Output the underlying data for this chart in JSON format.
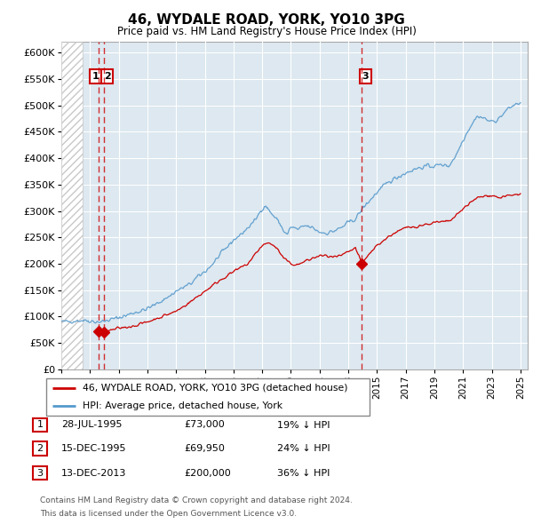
{
  "title": "46, WYDALE ROAD, YORK, YO10 3PG",
  "subtitle": "Price paid vs. HM Land Registry's House Price Index (HPI)",
  "transactions": [
    {
      "label": "1",
      "date": 1995.57,
      "price": 73000
    },
    {
      "label": "2",
      "date": 1995.96,
      "price": 69950
    },
    {
      "label": "3",
      "date": 2013.95,
      "price": 200000
    }
  ],
  "transaction_table": [
    {
      "num": "1",
      "date": "28-JUL-1995",
      "price": "£73,000",
      "hpi": "19% ↓ HPI"
    },
    {
      "num": "2",
      "date": "15-DEC-1995",
      "price": "£69,950",
      "hpi": "24% ↓ HPI"
    },
    {
      "num": "3",
      "date": "13-DEC-2013",
      "price": "£200,000",
      "hpi": "36% ↓ HPI"
    }
  ],
  "legend_line1": "46, WYDALE ROAD, YORK, YO10 3PG (detached house)",
  "legend_line2": "HPI: Average price, detached house, York",
  "footnote1": "Contains HM Land Registry data © Crown copyright and database right 2024.",
  "footnote2": "This data is licensed under the Open Government Licence v3.0.",
  "red_color": "#cc0000",
  "blue_line_color": "#5599cc",
  "bg_color": "#dde8f0",
  "hatch_color": "#c8c8c8",
  "ylim_max": 620000,
  "xmin": 1993.0,
  "xmax": 2025.5,
  "hpi_base_x": [
    1993.0,
    1993.5,
    1994.0,
    1994.5,
    1995.0,
    1995.5,
    1996.0,
    1996.5,
    1997.0,
    1997.5,
    1998.0,
    1998.5,
    1999.0,
    1999.5,
    2000.0,
    2000.5,
    2001.0,
    2001.5,
    2002.0,
    2002.5,
    2003.0,
    2003.5,
    2004.0,
    2004.5,
    2005.0,
    2005.5,
    2006.0,
    2006.5,
    2007.0,
    2007.25,
    2007.5,
    2007.75,
    2008.0,
    2008.25,
    2008.5,
    2008.75,
    2009.0,
    2009.5,
    2010.0,
    2010.5,
    2011.0,
    2011.5,
    2012.0,
    2012.5,
    2013.0,
    2013.5,
    2014.0,
    2014.5,
    2015.0,
    2015.5,
    2016.0,
    2016.5,
    2017.0,
    2017.5,
    2018.0,
    2018.5,
    2019.0,
    2019.5,
    2020.0,
    2020.5,
    2021.0,
    2021.5,
    2022.0,
    2022.5,
    2023.0,
    2023.5,
    2024.0,
    2024.5,
    2025.0
  ],
  "hpi_base_y": [
    90000,
    91000,
    92000,
    93000,
    92000,
    90000,
    91000,
    95000,
    98000,
    102000,
    107000,
    110000,
    115000,
    122000,
    130000,
    138000,
    148000,
    155000,
    162000,
    175000,
    185000,
    198000,
    215000,
    230000,
    245000,
    255000,
    268000,
    282000,
    305000,
    310000,
    300000,
    292000,
    285000,
    275000,
    262000,
    255000,
    270000,
    265000,
    272000,
    268000,
    260000,
    258000,
    262000,
    268000,
    278000,
    285000,
    305000,
    320000,
    335000,
    348000,
    358000,
    365000,
    372000,
    378000,
    382000,
    385000,
    385000,
    388000,
    385000,
    405000,
    435000,
    460000,
    480000,
    475000,
    468000,
    475000,
    490000,
    500000,
    505000
  ],
  "pp_base_x": [
    1995.57,
    1995.96,
    1997.0,
    1998.0,
    1999.0,
    2000.0,
    2001.0,
    2002.0,
    2003.0,
    2004.0,
    2005.0,
    2006.0,
    2007.0,
    2007.5,
    2008.0,
    2008.5,
    2009.0,
    2009.5,
    2010.0,
    2010.5,
    2011.0,
    2011.5,
    2012.0,
    2012.5,
    2013.0,
    2013.5,
    2013.95,
    2014.5,
    2015.0,
    2016.0,
    2017.0,
    2018.0,
    2019.0,
    2020.0,
    2020.5,
    2021.0,
    2021.5,
    2022.0,
    2022.5,
    2023.0,
    2023.5,
    2024.0,
    2024.5,
    2025.0
  ],
  "pp_base_y": [
    73000,
    69950,
    78000,
    82000,
    90000,
    100000,
    110000,
    128000,
    148000,
    168000,
    185000,
    200000,
    235000,
    240000,
    230000,
    210000,
    200000,
    198000,
    205000,
    210000,
    215000,
    215000,
    212000,
    215000,
    222000,
    230000,
    200000,
    220000,
    235000,
    255000,
    268000,
    272000,
    278000,
    280000,
    290000,
    305000,
    315000,
    325000,
    328000,
    330000,
    325000,
    328000,
    330000,
    332000
  ]
}
